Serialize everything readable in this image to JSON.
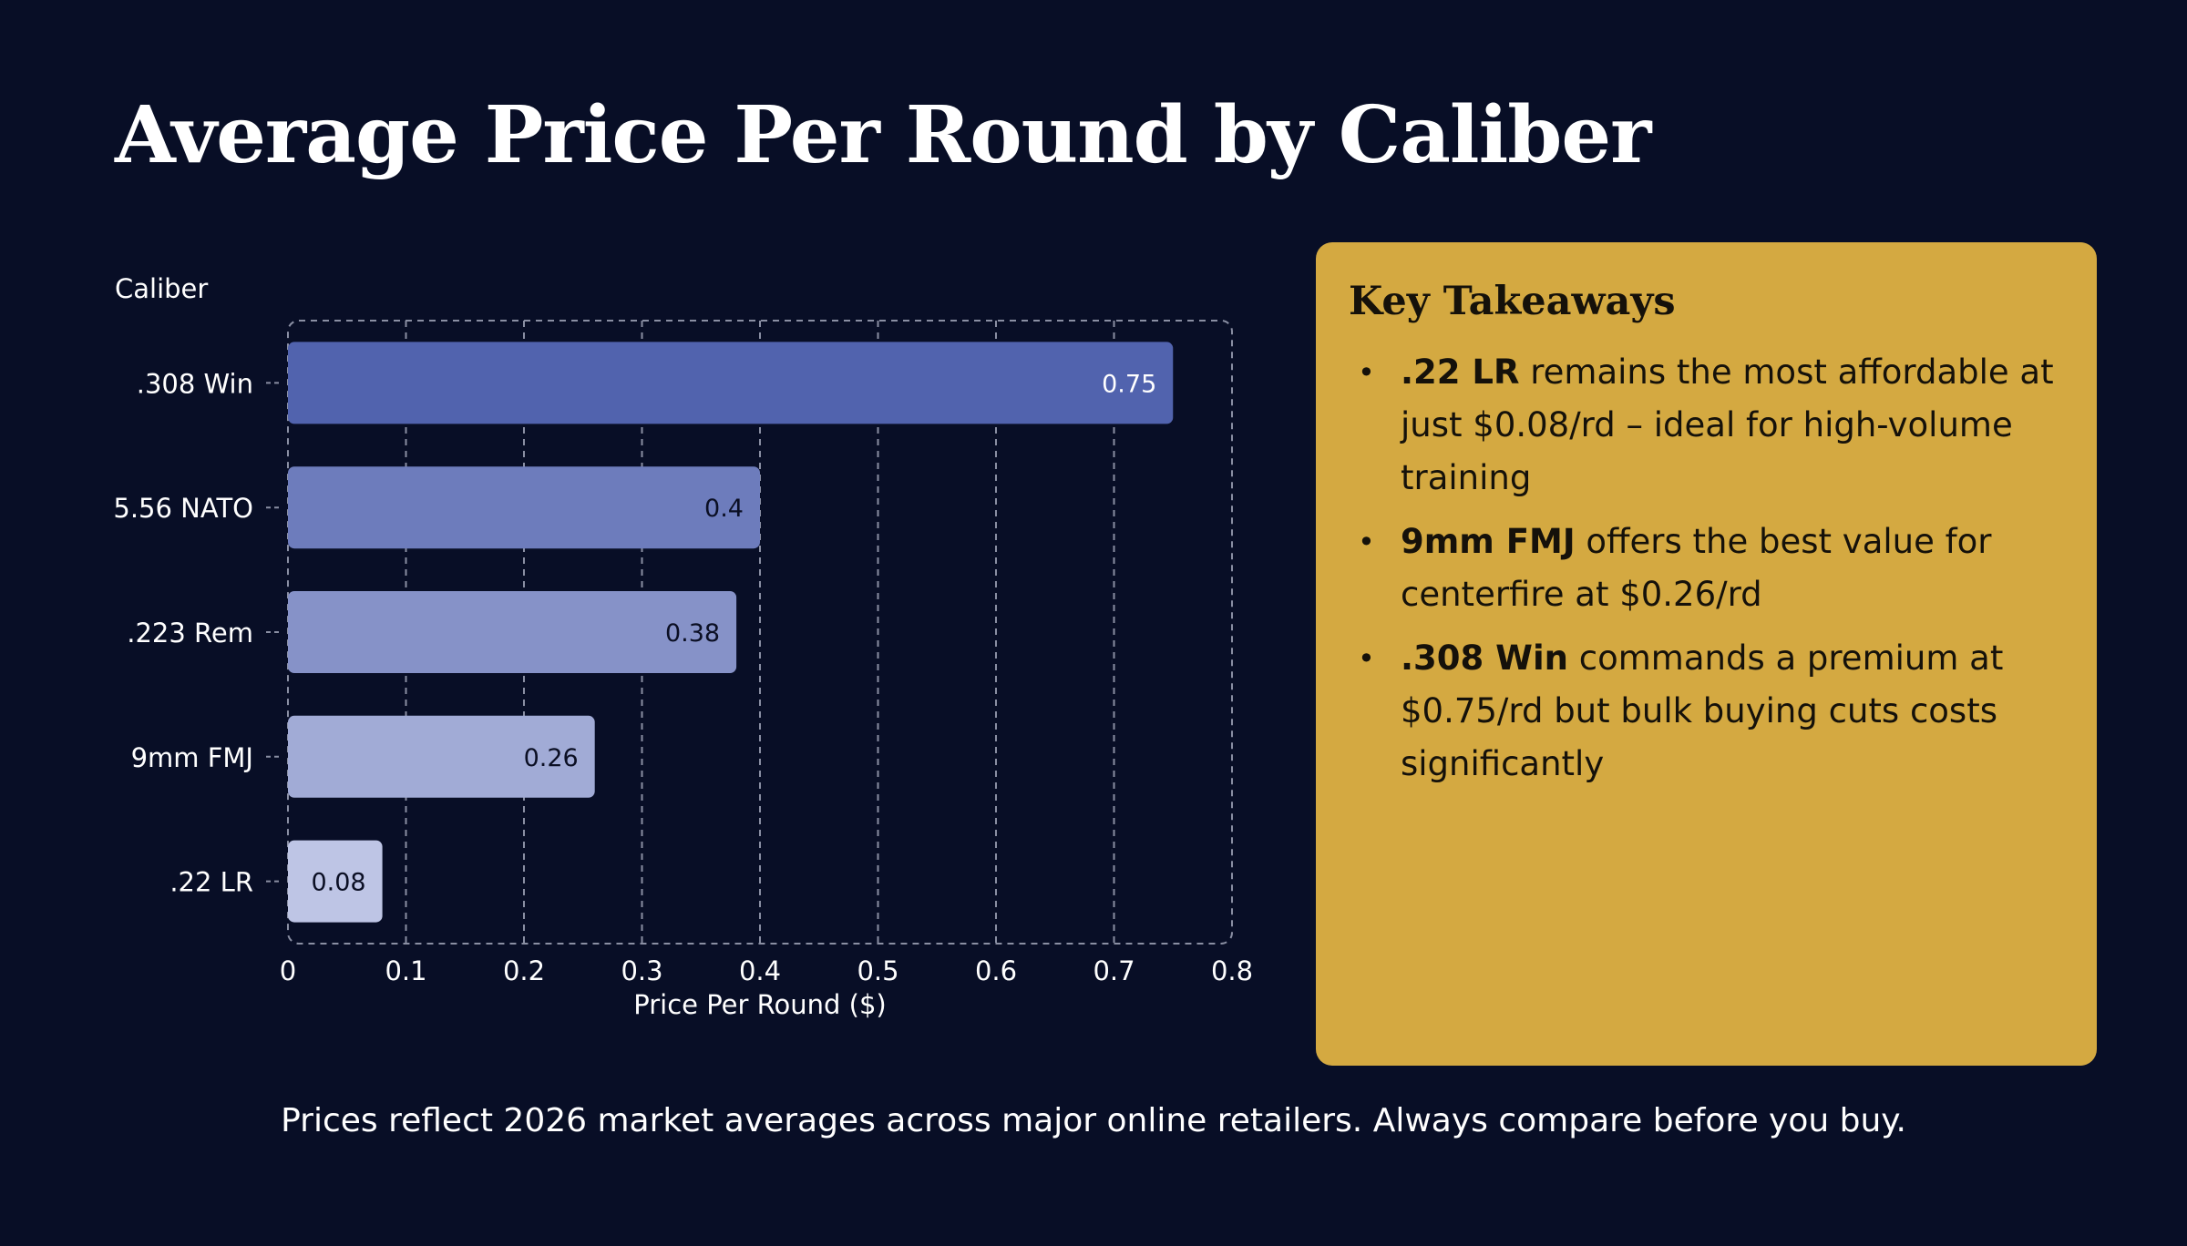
{
  "title": "Average Price Per Round by Caliber",
  "chart_data": {
    "type": "bar",
    "orientation": "horizontal",
    "categories": [
      ".308 Win",
      "5.56 NATO",
      ".223 Rem",
      "9mm FMJ",
      ".22 LR"
    ],
    "values": [
      0.75,
      0.4,
      0.38,
      0.26,
      0.08
    ],
    "value_labels": [
      "0.75",
      "0.4",
      "0.38",
      "0.26",
      "0.08"
    ],
    "bar_colors": [
      "#5163ae",
      "#6d7cbc",
      "#8692c8",
      "#a1abd6",
      "#bec5e5"
    ],
    "label_colors": [
      "#ffffff",
      "#0b0f24",
      "#0b0f24",
      "#0b0f24",
      "#0b0f24"
    ],
    "ylabel": "Caliber",
    "xlabel": "Price Per Round ($)",
    "xlim": [
      0,
      0.8
    ],
    "xticks": [
      0,
      0.1,
      0.2,
      0.3,
      0.4,
      0.5,
      0.6,
      0.7,
      0.8
    ],
    "xtick_labels": [
      "0",
      "0.1",
      "0.2",
      "0.3",
      "0.4",
      "0.5",
      "0.6",
      "0.7",
      "0.8"
    ],
    "grid": true,
    "legend": "none"
  },
  "takeaways": {
    "heading": "Key Takeaways",
    "items": [
      {
        "lead": ".22 LR",
        "text": " remains the most affordable at just $0.08/rd – ideal for high-volume training"
      },
      {
        "lead": "9mm FMJ",
        "text": " offers the best value for centerfire at $0.26/rd"
      },
      {
        "lead": ".308 Win",
        "text": " commands a premium at $0.75/rd but bulk buying cuts costs significantly"
      }
    ]
  },
  "footnote": "Prices reflect 2026 market averages across major online retailers. Always compare before you buy.",
  "colors": {
    "background": "#080e26",
    "card": "#d4a941",
    "grid": "#8a8fa3",
    "text": "#ffffff"
  }
}
